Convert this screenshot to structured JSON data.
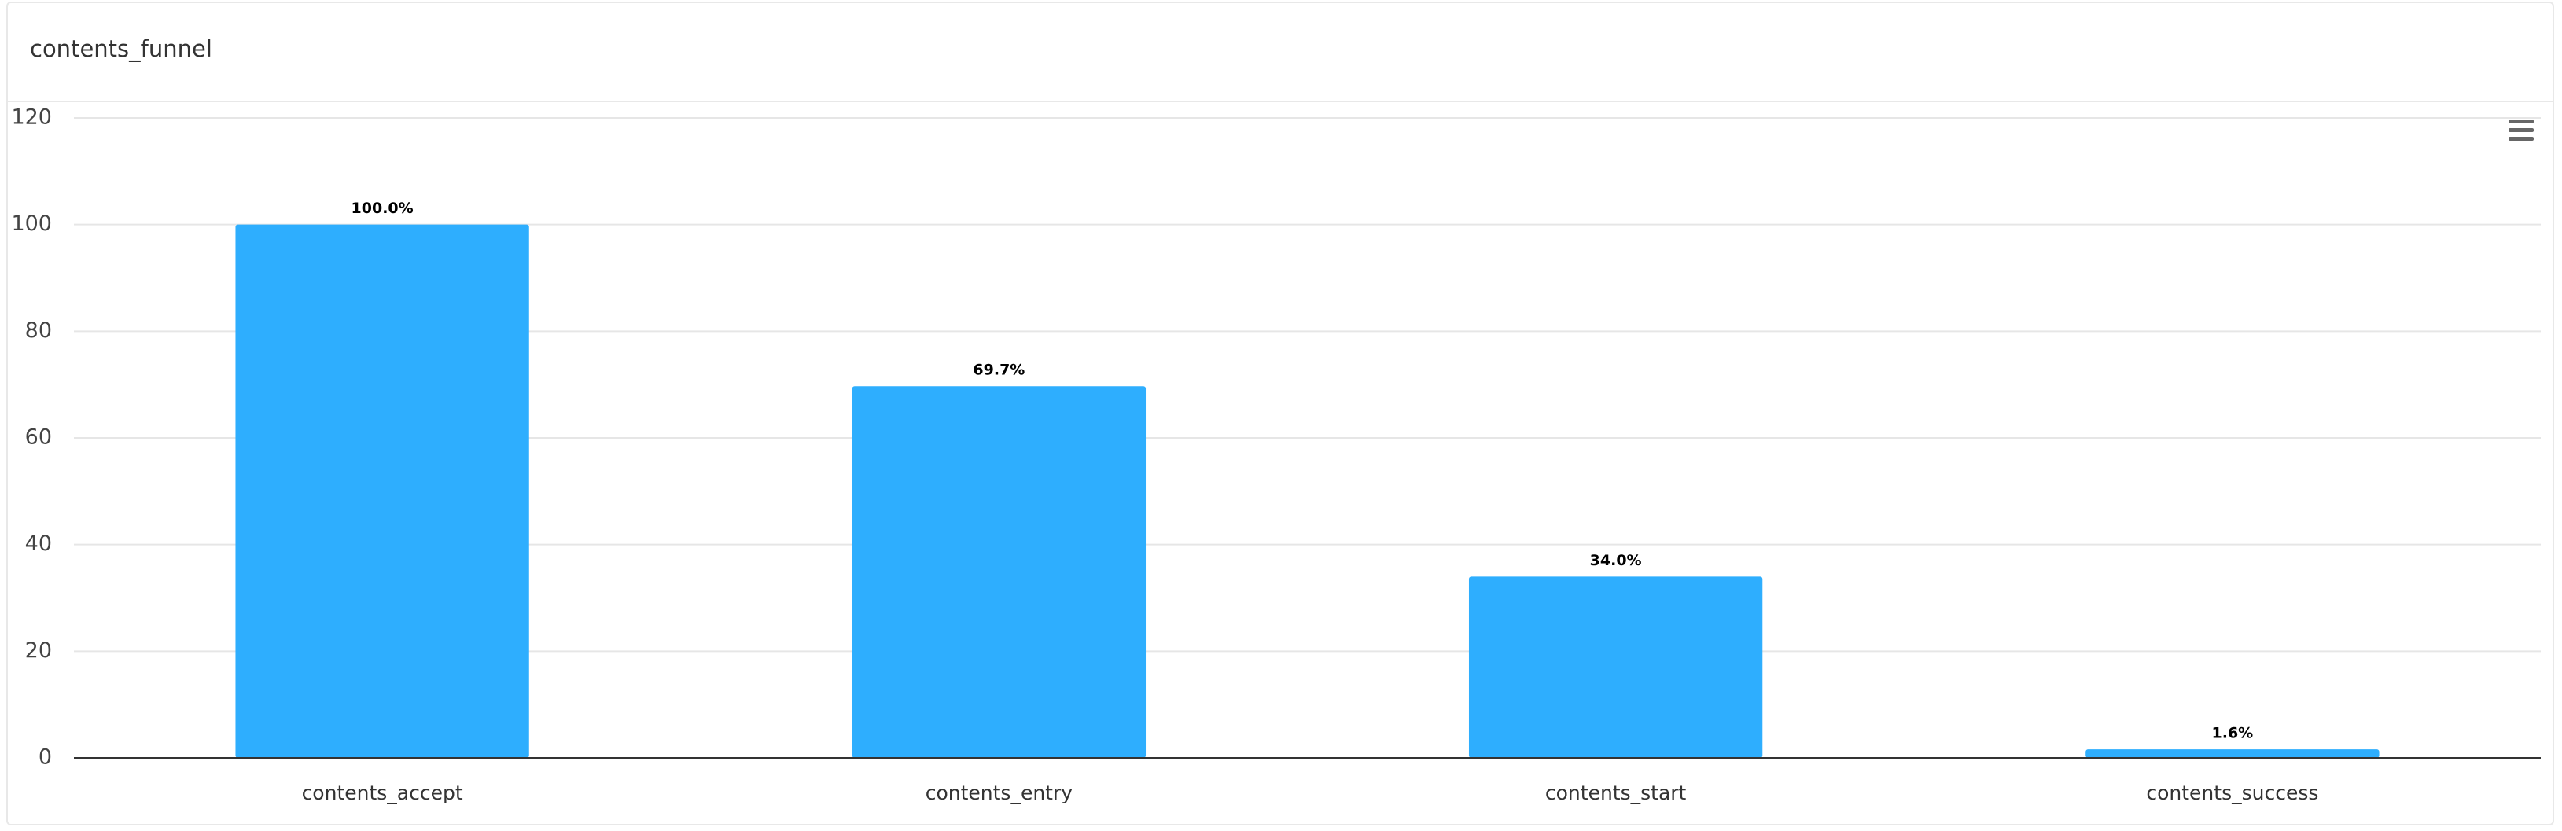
{
  "chart_data": {
    "type": "bar",
    "title": "contents_funnel",
    "categories": [
      "contents_accept",
      "contents_entry",
      "contents_start",
      "contents_success"
    ],
    "values": [
      100,
      69.7,
      34.0,
      1.6
    ],
    "value_labels": [
      "100.0%",
      "69.7%",
      "34.0%",
      "1.6%"
    ],
    "color": "#2eaefe",
    "ylim": [
      0,
      120
    ],
    "yticks": [
      0,
      20,
      40,
      60,
      80,
      100,
      120
    ],
    "grid": true
  }
}
